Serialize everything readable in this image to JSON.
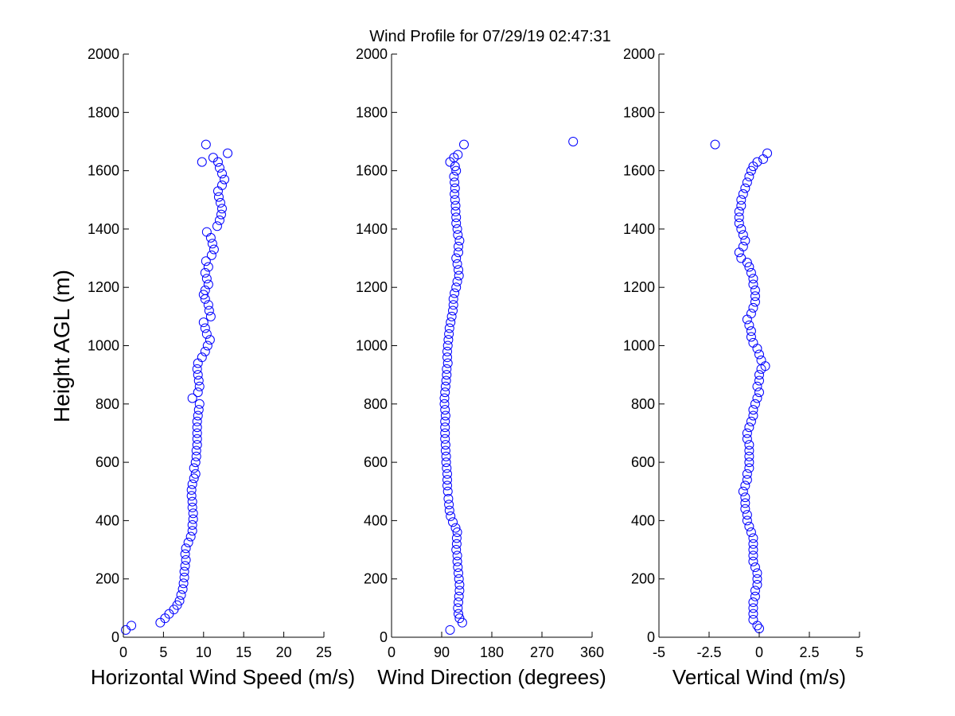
{
  "figure": {
    "title": "Wind Profile for  07/29/19 02:47:31",
    "ylabel": "Height AGL (m)",
    "marker_color": "#0000ff"
  },
  "chart_data": [
    {
      "type": "scatter",
      "xlabel": "Horizontal Wind Speed (m/s)",
      "ylabel": "Height AGL (m)",
      "xlim": [
        0,
        25
      ],
      "ylim": [
        0,
        2000
      ],
      "xticks": [
        "0",
        "5",
        "10",
        "15",
        "20",
        "25"
      ],
      "yticks": [
        "0",
        "200",
        "400",
        "600",
        "800",
        "1000",
        "1200",
        "1400",
        "1600",
        "1800",
        "2000"
      ],
      "grid": false,
      "points": [
        [
          0.3,
          25
        ],
        [
          1.0,
          40
        ],
        [
          4.6,
          50
        ],
        [
          5.2,
          65
        ],
        [
          5.7,
          80
        ],
        [
          6.3,
          95
        ],
        [
          6.7,
          110
        ],
        [
          7.0,
          125
        ],
        [
          7.2,
          145
        ],
        [
          7.4,
          165
        ],
        [
          7.5,
          185
        ],
        [
          7.6,
          205
        ],
        [
          7.6,
          225
        ],
        [
          7.7,
          245
        ],
        [
          7.8,
          265
        ],
        [
          7.7,
          285
        ],
        [
          7.8,
          305
        ],
        [
          8.1,
          325
        ],
        [
          8.4,
          345
        ],
        [
          8.6,
          365
        ],
        [
          8.6,
          385
        ],
        [
          8.7,
          405
        ],
        [
          8.7,
          425
        ],
        [
          8.6,
          445
        ],
        [
          8.6,
          465
        ],
        [
          8.5,
          485
        ],
        [
          8.5,
          505
        ],
        [
          8.6,
          525
        ],
        [
          8.8,
          545
        ],
        [
          9.0,
          560
        ],
        [
          8.8,
          580
        ],
        [
          9.0,
          600
        ],
        [
          9.1,
          620
        ],
        [
          9.1,
          640
        ],
        [
          9.2,
          660
        ],
        [
          9.2,
          680
        ],
        [
          9.2,
          700
        ],
        [
          9.2,
          720
        ],
        [
          9.2,
          740
        ],
        [
          9.3,
          760
        ],
        [
          9.4,
          780
        ],
        [
          9.5,
          800
        ],
        [
          8.6,
          820
        ],
        [
          9.3,
          840
        ],
        [
          9.5,
          860
        ],
        [
          9.4,
          880
        ],
        [
          9.3,
          900
        ],
        [
          9.2,
          920
        ],
        [
          9.3,
          940
        ],
        [
          9.8,
          960
        ],
        [
          10.2,
          980
        ],
        [
          10.5,
          1000
        ],
        [
          10.8,
          1020
        ],
        [
          10.4,
          1040
        ],
        [
          10.2,
          1060
        ],
        [
          10.0,
          1080
        ],
        [
          10.9,
          1100
        ],
        [
          10.7,
          1120
        ],
        [
          10.6,
          1140
        ],
        [
          10.2,
          1160
        ],
        [
          10.0,
          1175
        ],
        [
          10.2,
          1190
        ],
        [
          10.6,
          1210
        ],
        [
          10.4,
          1230
        ],
        [
          10.2,
          1250
        ],
        [
          10.6,
          1270
        ],
        [
          10.3,
          1290
        ],
        [
          11.0,
          1310
        ],
        [
          11.3,
          1330
        ],
        [
          11.1,
          1350
        ],
        [
          10.9,
          1370
        ],
        [
          10.4,
          1390
        ],
        [
          11.7,
          1410
        ],
        [
          12.0,
          1430
        ],
        [
          12.2,
          1450
        ],
        [
          12.3,
          1470
        ],
        [
          12.1,
          1490
        ],
        [
          11.9,
          1510
        ],
        [
          11.8,
          1530
        ],
        [
          12.3,
          1550
        ],
        [
          12.6,
          1570
        ],
        [
          12.3,
          1590
        ],
        [
          12.0,
          1610
        ],
        [
          11.8,
          1630
        ],
        [
          11.2,
          1645
        ],
        [
          13.0,
          1660
        ],
        [
          9.8,
          1630
        ],
        [
          10.3,
          1690
        ]
      ]
    },
    {
      "type": "scatter",
      "xlabel": "Wind Direction (degrees)",
      "ylabel": "",
      "xlim": [
        0,
        360
      ],
      "ylim": [
        0,
        2000
      ],
      "xticks": [
        "0",
        "90",
        "180",
        "270",
        "360"
      ],
      "yticks": [
        "0",
        "200",
        "400",
        "600",
        "800",
        "1000",
        "1200",
        "1400",
        "1600",
        "1800",
        "2000"
      ],
      "grid": false,
      "points": [
        [
          105,
          25
        ],
        [
          127,
          50
        ],
        [
          122,
          65
        ],
        [
          120,
          80
        ],
        [
          119,
          100
        ],
        [
          120,
          120
        ],
        [
          121,
          140
        ],
        [
          122,
          160
        ],
        [
          122,
          180
        ],
        [
          121,
          200
        ],
        [
          120,
          220
        ],
        [
          119,
          240
        ],
        [
          118,
          260
        ],
        [
          118,
          280
        ],
        [
          116,
          300
        ],
        [
          117,
          320
        ],
        [
          117,
          340
        ],
        [
          118,
          360
        ],
        [
          115,
          375
        ],
        [
          110,
          395
        ],
        [
          106,
          415
        ],
        [
          104,
          435
        ],
        [
          103,
          455
        ],
        [
          102,
          475
        ],
        [
          101,
          500
        ],
        [
          100,
          520
        ],
        [
          100,
          540
        ],
        [
          100,
          560
        ],
        [
          99,
          580
        ],
        [
          98,
          600
        ],
        [
          98,
          620
        ],
        [
          97,
          640
        ],
        [
          97,
          660
        ],
        [
          96,
          680
        ],
        [
          96,
          700
        ],
        [
          96,
          720
        ],
        [
          96,
          740
        ],
        [
          97,
          760
        ],
        [
          96,
          780
        ],
        [
          95,
          800
        ],
        [
          95,
          820
        ],
        [
          96,
          840
        ],
        [
          97,
          860
        ],
        [
          98,
          880
        ],
        [
          99,
          900
        ],
        [
          99,
          920
        ],
        [
          101,
          940
        ],
        [
          100,
          960
        ],
        [
          100,
          980
        ],
        [
          101,
          1000
        ],
        [
          102,
          1020
        ],
        [
          103,
          1040
        ],
        [
          104,
          1060
        ],
        [
          106,
          1080
        ],
        [
          108,
          1100
        ],
        [
          110,
          1120
        ],
        [
          111,
          1140
        ],
        [
          111,
          1160
        ],
        [
          113,
          1180
        ],
        [
          116,
          1200
        ],
        [
          118,
          1220
        ],
        [
          121,
          1240
        ],
        [
          120,
          1260
        ],
        [
          118,
          1280
        ],
        [
          116,
          1300
        ],
        [
          120,
          1320
        ],
        [
          120,
          1340
        ],
        [
          122,
          1360
        ],
        [
          119,
          1380
        ],
        [
          118,
          1400
        ],
        [
          116,
          1420
        ],
        [
          116,
          1440
        ],
        [
          115,
          1460
        ],
        [
          115,
          1480
        ],
        [
          114,
          1500
        ],
        [
          113,
          1520
        ],
        [
          114,
          1540
        ],
        [
          113,
          1560
        ],
        [
          112,
          1580
        ],
        [
          116,
          1600
        ],
        [
          114,
          1615
        ],
        [
          105,
          1630
        ],
        [
          119,
          1655
        ],
        [
          112,
          1645
        ],
        [
          130,
          1690
        ],
        [
          326,
          1700
        ]
      ]
    },
    {
      "type": "scatter",
      "xlabel": "Vertical Wind (m/s)",
      "ylabel": "",
      "xlim": [
        -5,
        5
      ],
      "ylim": [
        0,
        2000
      ],
      "xticks": [
        "-5",
        "-2.5",
        "0",
        "2.5",
        "5"
      ],
      "yticks": [
        "0",
        "200",
        "400",
        "600",
        "800",
        "1000",
        "1200",
        "1400",
        "1600",
        "1800",
        "2000"
      ],
      "grid": false,
      "points": [
        [
          0.0,
          30
        ],
        [
          -0.1,
          40
        ],
        [
          -0.3,
          60
        ],
        [
          -0.3,
          80
        ],
        [
          -0.3,
          100
        ],
        [
          -0.3,
          120
        ],
        [
          -0.2,
          140
        ],
        [
          -0.2,
          160
        ],
        [
          -0.1,
          180
        ],
        [
          -0.1,
          200
        ],
        [
          -0.1,
          220
        ],
        [
          -0.2,
          240
        ],
        [
          -0.3,
          260
        ],
        [
          -0.3,
          280
        ],
        [
          -0.3,
          300
        ],
        [
          -0.3,
          320
        ],
        [
          -0.3,
          340
        ],
        [
          -0.4,
          360
        ],
        [
          -0.5,
          380
        ],
        [
          -0.6,
          400
        ],
        [
          -0.6,
          420
        ],
        [
          -0.7,
          440
        ],
        [
          -0.7,
          460
        ],
        [
          -0.7,
          480
        ],
        [
          -0.8,
          500
        ],
        [
          -0.7,
          520
        ],
        [
          -0.6,
          540
        ],
        [
          -0.6,
          560
        ],
        [
          -0.5,
          580
        ],
        [
          -0.5,
          600
        ],
        [
          -0.5,
          620
        ],
        [
          -0.5,
          640
        ],
        [
          -0.5,
          660
        ],
        [
          -0.6,
          680
        ],
        [
          -0.6,
          700
        ],
        [
          -0.5,
          720
        ],
        [
          -0.4,
          740
        ],
        [
          -0.3,
          760
        ],
        [
          -0.3,
          780
        ],
        [
          -0.2,
          800
        ],
        [
          -0.1,
          820
        ],
        [
          0.0,
          840
        ],
        [
          -0.1,
          860
        ],
        [
          0.0,
          880
        ],
        [
          0.0,
          900
        ],
        [
          0.1,
          920
        ],
        [
          0.3,
          930
        ],
        [
          0.1,
          950
        ],
        [
          0.0,
          970
        ],
        [
          -0.1,
          990
        ],
        [
          -0.3,
          1010
        ],
        [
          -0.4,
          1030
        ],
        [
          -0.4,
          1050
        ],
        [
          -0.5,
          1070
        ],
        [
          -0.6,
          1090
        ],
        [
          -0.4,
          1110
        ],
        [
          -0.3,
          1130
        ],
        [
          -0.2,
          1150
        ],
        [
          -0.2,
          1170
        ],
        [
          -0.2,
          1190
        ],
        [
          -0.3,
          1210
        ],
        [
          -0.3,
          1230
        ],
        [
          -0.4,
          1250
        ],
        [
          -0.5,
          1270
        ],
        [
          -0.6,
          1285
        ],
        [
          -0.9,
          1300
        ],
        [
          -1.0,
          1320
        ],
        [
          -0.8,
          1340
        ],
        [
          -0.7,
          1360
        ],
        [
          -0.8,
          1380
        ],
        [
          -0.9,
          1400
        ],
        [
          -1.0,
          1420
        ],
        [
          -1.0,
          1440
        ],
        [
          -1.0,
          1460
        ],
        [
          -0.9,
          1480
        ],
        [
          -0.9,
          1500
        ],
        [
          -0.8,
          1520
        ],
        [
          -0.7,
          1540
        ],
        [
          -0.6,
          1560
        ],
        [
          -0.5,
          1580
        ],
        [
          -0.4,
          1600
        ],
        [
          -0.3,
          1615
        ],
        [
          0.2,
          1640
        ],
        [
          0.4,
          1660
        ],
        [
          -0.1,
          1630
        ],
        [
          -2.2,
          1690
        ]
      ]
    }
  ]
}
